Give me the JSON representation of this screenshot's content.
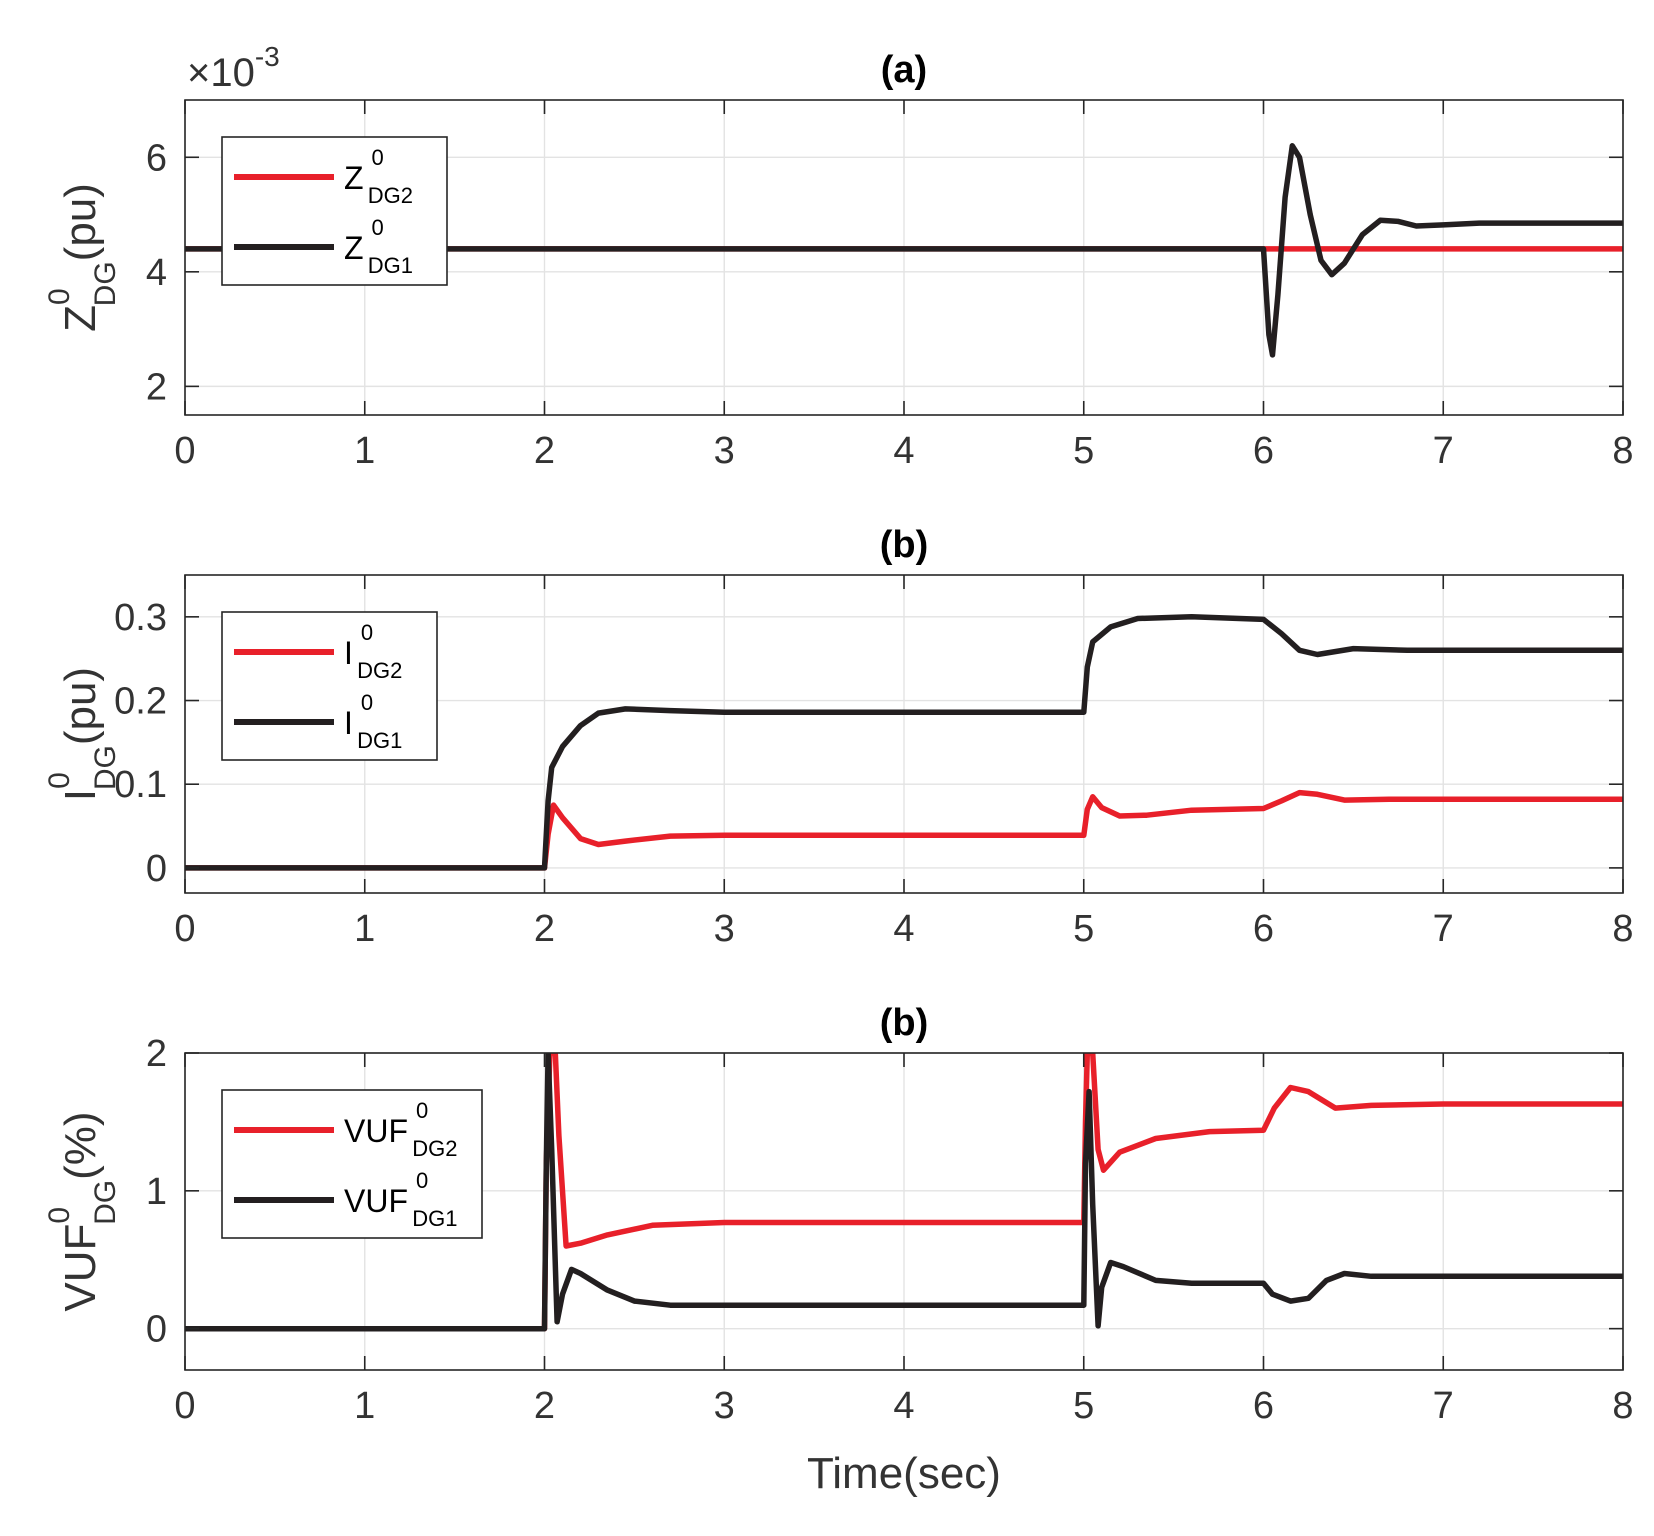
{
  "chart_data": [
    {
      "type": "line",
      "title": "(a)",
      "ylabel": {
        "main": "Z",
        "sup": "0",
        "sub": "DG",
        "unit": "(pu)"
      },
      "xlabel": "",
      "exponent_label": "×10",
      "exponent_power": "-3",
      "xlim": [
        0,
        8
      ],
      "ylim": [
        1.5,
        7
      ],
      "xticks": [
        0,
        1,
        2,
        3,
        4,
        5,
        6,
        7,
        8
      ],
      "yticks": [
        2,
        4,
        6
      ],
      "ytick_labels": [
        "2",
        "4",
        "6"
      ],
      "grid": true,
      "legend_position": "top-left",
      "series": [
        {
          "name": "Z",
          "sup": "0",
          "sub": "DG2",
          "color": "#e8202a",
          "points": [
            [
              0,
              4.4
            ],
            [
              6.0,
              4.4
            ],
            [
              8,
              4.4
            ]
          ]
        },
        {
          "name": "Z",
          "sup": "0",
          "sub": "DG1",
          "color": "#231f20",
          "points": [
            [
              0,
              4.4
            ],
            [
              6.0,
              4.4
            ],
            [
              6.01,
              3.9
            ],
            [
              6.03,
              2.9
            ],
            [
              6.05,
              2.55
            ],
            [
              6.08,
              3.6
            ],
            [
              6.12,
              5.3
            ],
            [
              6.16,
              6.2
            ],
            [
              6.2,
              6.0
            ],
            [
              6.26,
              5.0
            ],
            [
              6.32,
              4.2
            ],
            [
              6.38,
              3.95
            ],
            [
              6.45,
              4.15
            ],
            [
              6.55,
              4.65
            ],
            [
              6.65,
              4.9
            ],
            [
              6.75,
              4.88
            ],
            [
              6.85,
              4.8
            ],
            [
              7.0,
              4.82
            ],
            [
              7.2,
              4.85
            ],
            [
              8,
              4.85
            ]
          ]
        }
      ]
    },
    {
      "type": "line",
      "title": "(b)",
      "ylabel": {
        "main": "I",
        "sup": "0",
        "sub": "DG",
        "unit": "(pu)"
      },
      "xlabel": "",
      "xlim": [
        0,
        8
      ],
      "ylim": [
        -0.03,
        0.35
      ],
      "xticks": [
        0,
        1,
        2,
        3,
        4,
        5,
        6,
        7,
        8
      ],
      "yticks": [
        0,
        0.1,
        0.2,
        0.3
      ],
      "ytick_labels": [
        "0",
        "0.1",
        "0.2",
        "0.3"
      ],
      "grid": true,
      "legend_position": "top-left",
      "series": [
        {
          "name": "I",
          "sup": "0",
          "sub": "DG2",
          "color": "#e8202a",
          "points": [
            [
              0,
              0
            ],
            [
              2.0,
              0
            ],
            [
              2.02,
              0.04
            ],
            [
              2.05,
              0.075
            ],
            [
              2.1,
              0.06
            ],
            [
              2.2,
              0.035
            ],
            [
              2.3,
              0.028
            ],
            [
              2.45,
              0.032
            ],
            [
              2.7,
              0.038
            ],
            [
              3.0,
              0.039
            ],
            [
              4,
              0.039
            ],
            [
              5.0,
              0.039
            ],
            [
              5.02,
              0.07
            ],
            [
              5.05,
              0.085
            ],
            [
              5.1,
              0.072
            ],
            [
              5.2,
              0.062
            ],
            [
              5.35,
              0.063
            ],
            [
              5.6,
              0.069
            ],
            [
              6.0,
              0.071
            ],
            [
              6.1,
              0.08
            ],
            [
              6.2,
              0.09
            ],
            [
              6.3,
              0.088
            ],
            [
              6.45,
              0.081
            ],
            [
              6.7,
              0.082
            ],
            [
              8,
              0.082
            ]
          ]
        },
        {
          "name": "I",
          "sup": "0",
          "sub": "DG1",
          "color": "#231f20",
          "points": [
            [
              0,
              0
            ],
            [
              2.0,
              0
            ],
            [
              2.02,
              0.08
            ],
            [
              2.04,
              0.12
            ],
            [
              2.1,
              0.145
            ],
            [
              2.2,
              0.17
            ],
            [
              2.3,
              0.185
            ],
            [
              2.45,
              0.19
            ],
            [
              2.7,
              0.188
            ],
            [
              3.0,
              0.186
            ],
            [
              4,
              0.186
            ],
            [
              5.0,
              0.186
            ],
            [
              5.02,
              0.24
            ],
            [
              5.05,
              0.27
            ],
            [
              5.15,
              0.288
            ],
            [
              5.3,
              0.298
            ],
            [
              5.6,
              0.3
            ],
            [
              6.0,
              0.297
            ],
            [
              6.1,
              0.28
            ],
            [
              6.2,
              0.26
            ],
            [
              6.3,
              0.255
            ],
            [
              6.5,
              0.262
            ],
            [
              6.8,
              0.26
            ],
            [
              8,
              0.26
            ]
          ]
        }
      ]
    },
    {
      "type": "line",
      "title": "(b)",
      "ylabel": {
        "main": "VUF",
        "sup": "0",
        "sub": "DG",
        "unit": "(%)"
      },
      "xlabel": "Time(sec)",
      "xlim": [
        0,
        8
      ],
      "ylim": [
        -0.3,
        2
      ],
      "xticks": [
        0,
        1,
        2,
        3,
        4,
        5,
        6,
        7,
        8
      ],
      "yticks": [
        0,
        1,
        2
      ],
      "ytick_labels": [
        "0",
        "1",
        "2"
      ],
      "grid": true,
      "legend_position": "top-left",
      "series": [
        {
          "name": "VUF",
          "sup": "0",
          "sub": "DG2",
          "color": "#e8202a",
          "points": [
            [
              0,
              0
            ],
            [
              2.0,
              0
            ],
            [
              2.01,
              1.2
            ],
            [
              2.03,
              2.0
            ],
            [
              2.06,
              2.0
            ],
            [
              2.08,
              1.4
            ],
            [
              2.12,
              0.6
            ],
            [
              2.2,
              0.62
            ],
            [
              2.35,
              0.68
            ],
            [
              2.6,
              0.75
            ],
            [
              3.0,
              0.77
            ],
            [
              4,
              0.77
            ],
            [
              5.0,
              0.77
            ],
            [
              5.01,
              1.5
            ],
            [
              5.02,
              2.0
            ],
            [
              5.05,
              2.0
            ],
            [
              5.08,
              1.3
            ],
            [
              5.11,
              1.15
            ],
            [
              5.2,
              1.28
            ],
            [
              5.4,
              1.38
            ],
            [
              5.7,
              1.43
            ],
            [
              6.0,
              1.44
            ],
            [
              6.06,
              1.6
            ],
            [
              6.15,
              1.75
            ],
            [
              6.25,
              1.72
            ],
            [
              6.4,
              1.6
            ],
            [
              6.6,
              1.62
            ],
            [
              7.0,
              1.63
            ],
            [
              8,
              1.63
            ]
          ]
        },
        {
          "name": "VUF",
          "sup": "0",
          "sub": "DG1",
          "color": "#231f20",
          "points": [
            [
              0,
              0
            ],
            [
              2.0,
              0
            ],
            [
              2.01,
              1.2
            ],
            [
              2.02,
              2.0
            ],
            [
              2.04,
              1.3
            ],
            [
              2.07,
              0.05
            ],
            [
              2.1,
              0.25
            ],
            [
              2.15,
              0.43
            ],
            [
              2.2,
              0.4
            ],
            [
              2.35,
              0.28
            ],
            [
              2.5,
              0.2
            ],
            [
              2.7,
              0.17
            ],
            [
              3.0,
              0.17
            ],
            [
              4,
              0.17
            ],
            [
              5.0,
              0.17
            ],
            [
              5.01,
              1.2
            ],
            [
              5.03,
              1.72
            ],
            [
              5.05,
              0.9
            ],
            [
              5.08,
              0.02
            ],
            [
              5.1,
              0.3
            ],
            [
              5.15,
              0.48
            ],
            [
              5.22,
              0.45
            ],
            [
              5.4,
              0.35
            ],
            [
              5.6,
              0.33
            ],
            [
              6.0,
              0.33
            ],
            [
              6.05,
              0.25
            ],
            [
              6.15,
              0.2
            ],
            [
              6.25,
              0.22
            ],
            [
              6.35,
              0.35
            ],
            [
              6.45,
              0.4
            ],
            [
              6.6,
              0.38
            ],
            [
              7.0,
              0.38
            ],
            [
              8,
              0.38
            ]
          ]
        }
      ]
    }
  ]
}
